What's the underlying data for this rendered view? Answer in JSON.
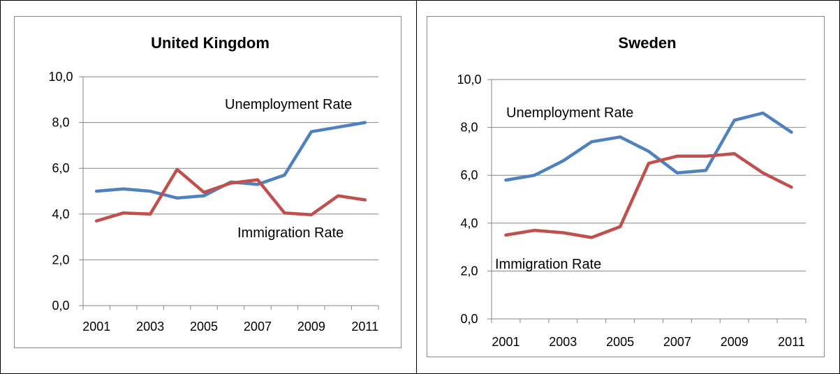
{
  "chart_data": [
    {
      "type": "line",
      "title": "United Kingdom",
      "x": [
        2001,
        2002,
        2003,
        2004,
        2005,
        2006,
        2007,
        2008,
        2009,
        2010,
        2011
      ],
      "xticks": [
        "2001",
        "2003",
        "2005",
        "2007",
        "2009",
        "2011"
      ],
      "yticks": [
        "0,0",
        "2,0",
        "4,0",
        "6,0",
        "8,0",
        "10,0"
      ],
      "ylim": [
        0,
        10
      ],
      "grid": true,
      "series": [
        {
          "name": "Unemployment Rate",
          "color": "#4F81BD",
          "values": [
            5.0,
            5.1,
            5.0,
            4.7,
            4.8,
            5.4,
            5.3,
            5.7,
            7.6,
            7.8,
            8.0
          ]
        },
        {
          "name": "Immigration Rate",
          "color": "#C0504D",
          "values": [
            3.7,
            4.05,
            4.0,
            5.95,
            4.95,
            5.35,
            5.5,
            4.05,
            3.97,
            4.8,
            4.62
          ]
        }
      ]
    },
    {
      "type": "line",
      "title": "Sweden",
      "x": [
        2001,
        2002,
        2003,
        2004,
        2005,
        2006,
        2007,
        2008,
        2009,
        2010,
        2011
      ],
      "xticks": [
        "2001",
        "2003",
        "2005",
        "2007",
        "2009",
        "2011"
      ],
      "yticks": [
        "0,0",
        "2,0",
        "4,0",
        "6,0",
        "8,0",
        "10,0"
      ],
      "ylim": [
        0,
        10
      ],
      "grid": true,
      "series": [
        {
          "name": "Unemployment Rate",
          "color": "#4F81BD",
          "values": [
            5.8,
            6.0,
            6.6,
            7.4,
            7.6,
            7.0,
            6.1,
            6.2,
            8.3,
            8.6,
            7.8
          ]
        },
        {
          "name": "Immigration Rate",
          "color": "#C0504D",
          "values": [
            3.5,
            3.7,
            3.6,
            3.4,
            3.85,
            6.5,
            6.8,
            6.8,
            6.9,
            6.1,
            5.5
          ]
        }
      ]
    }
  ]
}
